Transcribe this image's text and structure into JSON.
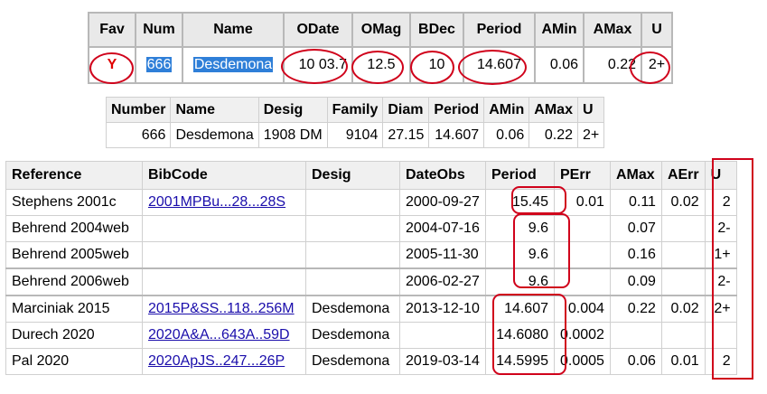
{
  "top_table": {
    "headers": [
      "Fav",
      "Num",
      "Name",
      "ODate",
      "OMag",
      "BDec",
      "Period",
      "AMin",
      "AMax",
      "U"
    ],
    "row": {
      "fav": "Y",
      "num": "666",
      "name": "Desdemona",
      "odate": "10 03.7",
      "omag": "12.5",
      "bdec": "10",
      "period": "14.607",
      "amin": "0.06",
      "amax": "0.22",
      "u": "2+"
    }
  },
  "summary_table": {
    "headers": [
      "Number",
      "Name",
      "Desig",
      "Family",
      "Diam",
      "Period",
      "AMin",
      "AMax",
      "U"
    ],
    "row": {
      "number": "666",
      "name": "Desdemona",
      "desig": "1908 DM",
      "family": "9104",
      "diam": "27.15",
      "period": "14.607",
      "amin": "0.06",
      "amax": "0.22",
      "u": "2+"
    }
  },
  "reference_table": {
    "headers": [
      "Reference",
      "BibCode",
      "Desig",
      "DateObs",
      "Period",
      "PErr",
      "AMax",
      "AErr",
      "U"
    ],
    "rows": [
      {
        "reference": "Stephens 2001c",
        "bibcode": "2001MPBu...28...28S",
        "desig": "",
        "dateobs": "2000-09-27",
        "period": "15.45",
        "perr": "0.01",
        "amax": "0.11",
        "aerr": "0.02",
        "u": "2"
      },
      {
        "reference": "Behrend 2004web",
        "bibcode": "",
        "desig": "",
        "dateobs": "2004-07-16",
        "period": "9.6",
        "perr": "",
        "amax": "0.07",
        "aerr": "",
        "u": "2-"
      },
      {
        "reference": "Behrend 2005web",
        "bibcode": "",
        "desig": "",
        "dateobs": "2005-11-30",
        "period": "9.6",
        "perr": "",
        "amax": "0.16",
        "aerr": "",
        "u": "1+"
      },
      {
        "reference": "Behrend 2006web",
        "bibcode": "",
        "desig": "",
        "dateobs": "2006-02-27",
        "period": "9.6",
        "perr": "",
        "amax": "0.09",
        "aerr": "",
        "u": "2-"
      },
      {
        "reference": "Marciniak 2015",
        "bibcode": "2015P&SS..118..256M",
        "desig": "Desdemona",
        "dateobs": "2013-12-10",
        "period": "14.607",
        "perr": "0.004",
        "amax": "0.22",
        "aerr": "0.02",
        "u": "2+"
      },
      {
        "reference": "Durech 2020",
        "bibcode": "2020A&A...643A..59D",
        "desig": "Desdemona",
        "dateobs": "",
        "period": "14.6080",
        "perr": "0.0002",
        "amax": "",
        "aerr": "",
        "u": ""
      },
      {
        "reference": "Pal 2020",
        "bibcode": "2020ApJS..247...26P",
        "desig": "Desdemona",
        "dateobs": "2019-03-14",
        "period": "14.5995",
        "perr": "0.0005",
        "amax": "0.06",
        "aerr": "0.01",
        "u": "2"
      }
    ]
  },
  "annotation_color": "#d0021b"
}
